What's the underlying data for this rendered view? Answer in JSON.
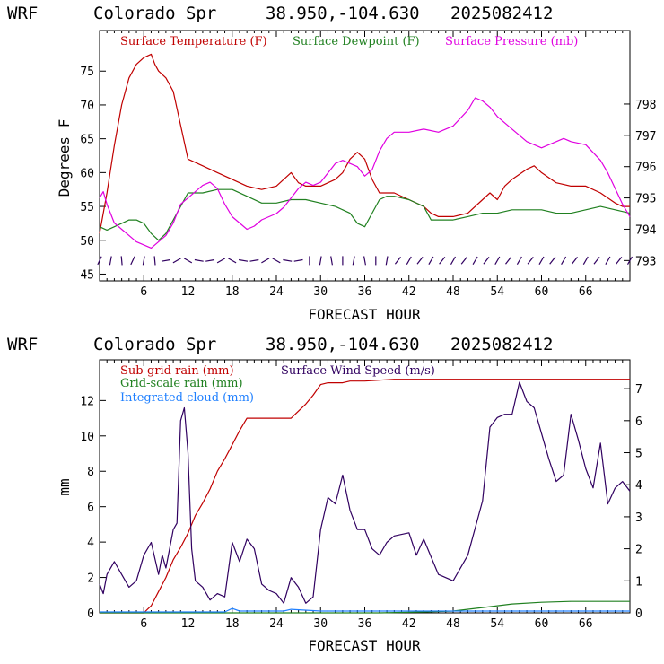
{
  "chart_data": [
    {
      "type": "line",
      "header": {
        "model": "WRF",
        "station": "Colorado Spr",
        "coords": "38.950,-104.630",
        "init": "2025082412"
      },
      "xlabel": "FORECAST HOUR",
      "ylabel": "Degrees F",
      "xlim": [
        0,
        72
      ],
      "ylim": [
        44,
        81
      ],
      "y2lim": [
        792.35,
        800.35
      ],
      "x_ticks": [
        "6",
        "12",
        "18",
        "24",
        "30",
        "36",
        "42",
        "48",
        "54",
        "60",
        "66"
      ],
      "y_ticks": [
        "45",
        "50",
        "55",
        "60",
        "65",
        "70",
        "75"
      ],
      "y2_ticks": [
        "793",
        "794",
        "795",
        "796",
        "797",
        "798"
      ],
      "colors": {
        "temperature": "#c00000",
        "dewpoint": "#208020",
        "pressure": "#e000e0",
        "wind": "#300060"
      },
      "series": [
        {
          "name": "Surface Temperature (F)",
          "axis": "left",
          "color": "#c00000",
          "x": [
            0,
            0.5,
            1,
            2,
            3,
            4,
            5,
            6,
            7,
            7.5,
            8,
            9,
            10,
            11,
            12,
            14,
            16,
            18,
            20,
            22,
            24,
            25,
            26,
            27,
            28,
            30,
            32,
            33,
            34,
            35,
            36,
            37,
            38,
            40,
            42,
            44,
            45,
            46,
            48,
            50,
            52,
            53,
            54,
            55,
            56,
            58,
            59,
            60,
            62,
            64,
            66,
            68,
            70,
            71,
            72
          ],
          "y": [
            51,
            54,
            57,
            64,
            70,
            74,
            76,
            77,
            77.5,
            76,
            75,
            74,
            72,
            67,
            62,
            61,
            60,
            59,
            58,
            57.5,
            58,
            59,
            60,
            58.5,
            58,
            58,
            59,
            60,
            62,
            63,
            62,
            59,
            57,
            57,
            56,
            55,
            54,
            53.5,
            53.5,
            54,
            56,
            57,
            56,
            58,
            59,
            60.5,
            61,
            60,
            58.5,
            58,
            58,
            57,
            55.5,
            55,
            55
          ]
        },
        {
          "name": "Surface Dewpoint (F)",
          "axis": "left",
          "color": "#208020",
          "x": [
            0,
            1,
            2,
            3,
            4,
            5,
            6,
            7,
            8,
            9,
            10,
            11,
            12,
            14,
            16,
            18,
            20,
            22,
            24,
            26,
            28,
            30,
            32,
            34,
            35,
            36,
            37,
            38,
            39,
            40,
            42,
            44,
            45,
            46,
            48,
            50,
            52,
            54,
            56,
            58,
            60,
            62,
            64,
            66,
            68,
            70,
            72
          ],
          "y": [
            52,
            51.5,
            52,
            52.5,
            53,
            53,
            52.5,
            51,
            50,
            51,
            53,
            55,
            57,
            57,
            57.5,
            57.5,
            56.5,
            55.5,
            55.5,
            56,
            56,
            55.5,
            55,
            54,
            52.5,
            52,
            54,
            56,
            56.5,
            56.5,
            56,
            55,
            53,
            53,
            53,
            53.5,
            54,
            54,
            54.5,
            54.5,
            54.5,
            54,
            54,
            54.5,
            55,
            54.5,
            54
          ]
        },
        {
          "name": "Surface Pressure (mb)",
          "axis": "right",
          "color": "#e000e0",
          "x": [
            0,
            0.5,
            1,
            2,
            3,
            4,
            5,
            6,
            7,
            8,
            9,
            10,
            11,
            12,
            13,
            14,
            15,
            16,
            17,
            18,
            19,
            20,
            21,
            22,
            24,
            25,
            26,
            27,
            28,
            29,
            30,
            31,
            32,
            33,
            34,
            35,
            36,
            37,
            38,
            39,
            40,
            42,
            44,
            46,
            48,
            50,
            51,
            52,
            53,
            54,
            56,
            58,
            60,
            62,
            63,
            64,
            66,
            68,
            69,
            70,
            71,
            72
          ],
          "y": [
            795,
            795.2,
            794.8,
            794.2,
            794,
            793.8,
            793.6,
            793.5,
            793.4,
            793.6,
            793.8,
            794.2,
            794.8,
            795,
            795.2,
            795.4,
            795.5,
            795.3,
            794.8,
            794.4,
            794.2,
            794,
            794.1,
            794.3,
            794.5,
            794.7,
            795,
            795.3,
            795.5,
            795.4,
            795.5,
            795.8,
            796.1,
            796.2,
            796.1,
            796,
            795.7,
            795.9,
            796.5,
            796.9,
            797.1,
            797.1,
            797.2,
            797.1,
            797.3,
            797.8,
            798.2,
            798.1,
            797.9,
            797.6,
            797.2,
            796.8,
            796.6,
            796.8,
            796.9,
            796.8,
            796.7,
            796.2,
            795.8,
            795.3,
            794.8,
            794.4
          ]
        }
      ],
      "wind_barbs": {
        "start": 0,
        "step": 1.5,
        "count": 49,
        "color": "#300060"
      }
    },
    {
      "type": "line",
      "header": {
        "model": "WRF",
        "station": "Colorado Spr",
        "coords": "38.950,-104.630",
        "init": "2025082412"
      },
      "xlabel": "FORECAST HOUR",
      "ylabel": "mm",
      "xlim": [
        0,
        72
      ],
      "ylim": [
        0,
        14.3
      ],
      "y2lim": [
        0,
        7.9
      ],
      "x_ticks": [
        "6",
        "12",
        "18",
        "24",
        "30",
        "36",
        "42",
        "48",
        "54",
        "60",
        "66"
      ],
      "y_ticks": [
        "0",
        "2",
        "4",
        "6",
        "8",
        "10",
        "12"
      ],
      "y2_ticks": [
        "0",
        "1",
        "2",
        "3",
        "4",
        "5",
        "6",
        "7"
      ],
      "series": [
        {
          "name": "Sub-grid rain (mm)",
          "axis": "left",
          "color": "#c00000",
          "x": [
            0,
            6,
            7,
            8,
            9,
            10,
            11,
            12,
            13,
            14,
            15,
            16,
            17,
            18,
            19,
            20,
            21,
            22,
            24,
            26,
            27,
            28,
            29,
            30,
            31,
            32,
            33,
            34,
            36,
            40,
            45,
            50,
            60,
            72
          ],
          "y": [
            0,
            0,
            0.4,
            1.2,
            2,
            3,
            3.7,
            4.5,
            5.5,
            6.2,
            7,
            8,
            8.7,
            9.5,
            10.3,
            11,
            11,
            11,
            11,
            11,
            11.4,
            11.8,
            12.3,
            12.9,
            13,
            13,
            13,
            13.1,
            13.1,
            13.2,
            13.2,
            13.2,
            13.2,
            13.2
          ]
        },
        {
          "name": "Grid-scale rain (mm)",
          "axis": "left",
          "color": "#208020",
          "x": [
            0,
            38,
            44,
            48,
            52,
            56,
            60,
            64,
            68,
            72
          ],
          "y": [
            0,
            0,
            0.05,
            0.1,
            0.3,
            0.5,
            0.6,
            0.65,
            0.65,
            0.65
          ]
        },
        {
          "name": "Integrated cloud (mm)",
          "axis": "left",
          "color": "#2080ff",
          "x": [
            0,
            17,
            18,
            19,
            20,
            25,
            26,
            30,
            72
          ],
          "y": [
            0.05,
            0.05,
            0.25,
            0.1,
            0.1,
            0.1,
            0.2,
            0.1,
            0.1
          ]
        },
        {
          "name": "Surface Wind Speed (m/s)",
          "axis": "right",
          "color": "#300060",
          "x": [
            0,
            0.5,
            1,
            2,
            3,
            4,
            5,
            6,
            7,
            8,
            8.5,
            9,
            9.5,
            10,
            10.5,
            11,
            11.5,
            12,
            12.5,
            13,
            14,
            15,
            16,
            17,
            18,
            19,
            20,
            21,
            22,
            23,
            24,
            25,
            26,
            27,
            28,
            29,
            30,
            31,
            32,
            33,
            34,
            35,
            36,
            37,
            38,
            39,
            40,
            42,
            43,
            44,
            46,
            48,
            50,
            52,
            53,
            54,
            55,
            56,
            57,
            58,
            59,
            60,
            61,
            62,
            63,
            64,
            65,
            66,
            67,
            68,
            69,
            70,
            71,
            72
          ],
          "y": [
            0.9,
            0.6,
            1.2,
            1.6,
            1.2,
            0.8,
            1,
            1.8,
            2.2,
            1.2,
            1.8,
            1.4,
            2,
            2.6,
            2.8,
            6,
            6.4,
            5,
            2,
            1,
            0.8,
            0.4,
            0.6,
            0.5,
            2.2,
            1.6,
            2.3,
            2,
            0.9,
            0.7,
            0.6,
            0.3,
            1.1,
            0.8,
            0.3,
            0.5,
            2.6,
            3.6,
            3.4,
            4.3,
            3.2,
            2.6,
            2.6,
            2,
            1.8,
            2.2,
            2.4,
            2.5,
            1.8,
            2.3,
            1.2,
            1,
            1.8,
            3.5,
            5.8,
            6.1,
            6.2,
            6.2,
            7.2,
            6.6,
            6.4,
            5.6,
            4.8,
            4.1,
            4.3,
            6.2,
            5.4,
            4.5,
            3.9,
            5.3,
            3.4,
            3.9,
            4.1,
            3.8
          ]
        }
      ]
    }
  ]
}
